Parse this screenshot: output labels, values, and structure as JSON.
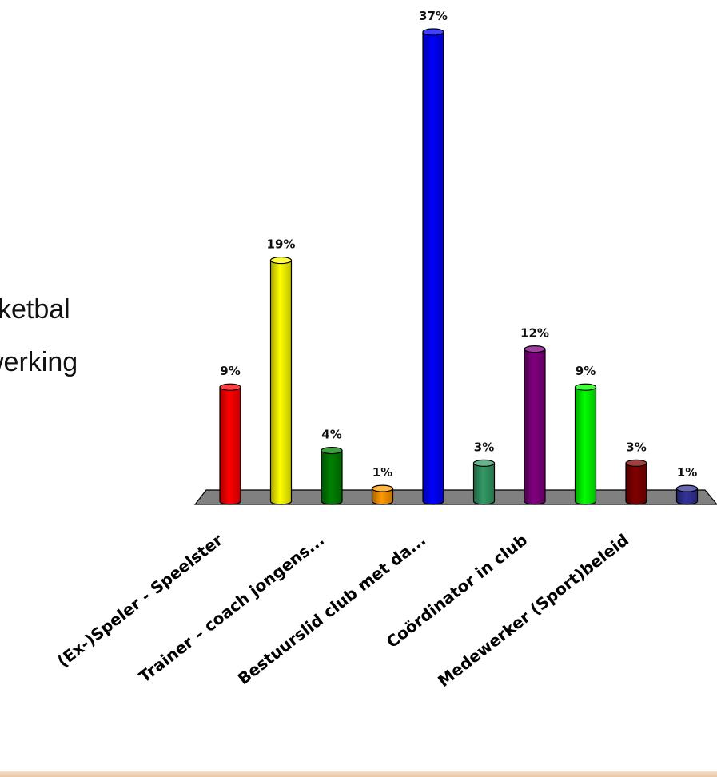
{
  "slide": {
    "lines": [
      "sketbal",
      "werking"
    ]
  },
  "chart_data": {
    "type": "bar",
    "categories": [
      "(Ex-)Speler - Speelster",
      "",
      "Trainer – coach jongens...",
      "",
      "Bestuurslid club met da...",
      "",
      "Coördinator in club",
      "",
      "Medewerker (Sport)beleid",
      ""
    ],
    "values": [
      9,
      19,
      4,
      1,
      37,
      3,
      12,
      9,
      3,
      1
    ],
    "data_labels": [
      "9%",
      "19%",
      "4%",
      "1%",
      "37%",
      "3%",
      "12%",
      "9%",
      "3%",
      "1%"
    ],
    "colors": [
      "#ff0000",
      "#ffff00",
      "#008000",
      "#ff9900",
      "#0000ff",
      "#339966",
      "#800080",
      "#00ff00",
      "#800000",
      "#333399"
    ],
    "ylim": [
      0,
      37
    ],
    "grid": false,
    "legend": "none",
    "floor_color": "#808080",
    "three_d": true
  }
}
